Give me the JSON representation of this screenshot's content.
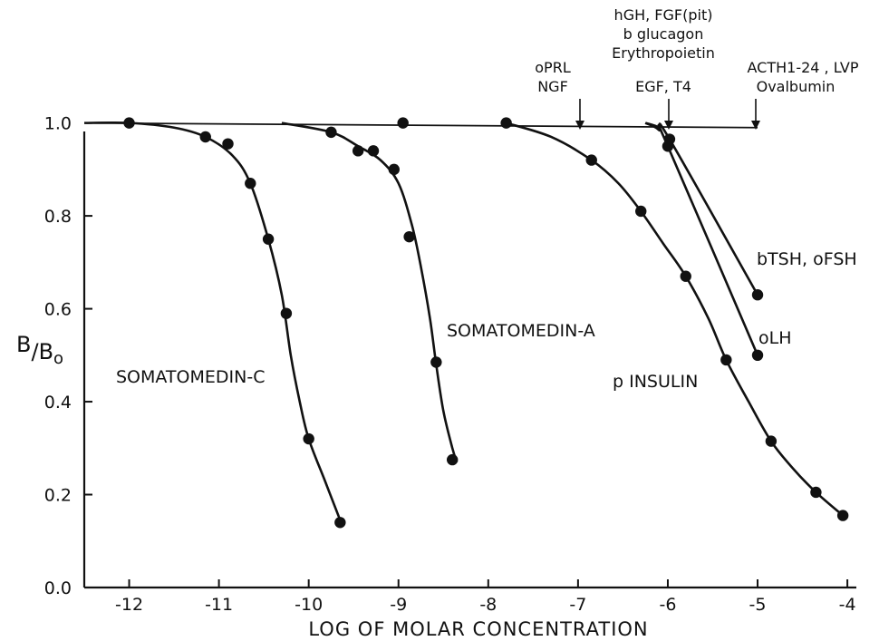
{
  "chart_data": {
    "type": "line",
    "title": "",
    "xlabel": "LOG OF MOLAR CONCENTRATION",
    "ylabel": {
      "main": "B",
      "sep": "/",
      "sub": "B",
      "sub_index": "o"
    },
    "xlim": [
      -12.5,
      -3.9
    ],
    "ylim": [
      0.0,
      1.05
    ],
    "x_ticks": [
      -12,
      -11,
      -10,
      -9,
      -8,
      -7,
      -6,
      -5,
      -4
    ],
    "x_tick_labels": [
      "-12",
      "-11",
      "-10",
      "-9",
      "-8",
      "-7",
      "-6",
      "-5",
      "-4"
    ],
    "y_ticks": [
      0.0,
      0.2,
      0.4,
      0.6,
      0.8,
      1.0
    ],
    "y_tick_labels": [
      "0.0",
      "0.2",
      "0.4",
      "0.6",
      "0.8",
      "1.0"
    ],
    "grid": false,
    "reference_line": {
      "x": [
        -12.5,
        -5.0
      ],
      "y": [
        1.0,
        0.99
      ]
    },
    "series": [
      {
        "name": "SOMATOMEDIN-C",
        "points": [
          [
            -12.0,
            1.0
          ],
          [
            -11.15,
            0.97
          ],
          [
            -10.9,
            0.955
          ],
          [
            -10.65,
            0.87
          ],
          [
            -10.45,
            0.75
          ],
          [
            -10.25,
            0.59
          ],
          [
            -10.0,
            0.32
          ],
          [
            -9.65,
            0.14
          ]
        ],
        "curve": [
          [
            -12.5,
            1.0
          ],
          [
            -12.0,
            1.0
          ],
          [
            -11.5,
            0.99
          ],
          [
            -11.15,
            0.97
          ],
          [
            -10.85,
            0.93
          ],
          [
            -10.65,
            0.87
          ],
          [
            -10.45,
            0.75
          ],
          [
            -10.3,
            0.63
          ],
          [
            -10.2,
            0.5
          ],
          [
            -10.1,
            0.4
          ],
          [
            -10.0,
            0.32
          ],
          [
            -9.82,
            0.23
          ],
          [
            -9.65,
            0.145
          ]
        ]
      },
      {
        "name": "SOMATOMEDIN-A",
        "points": [
          [
            -9.75,
            0.98
          ],
          [
            -9.45,
            0.94
          ],
          [
            -9.28,
            0.94
          ],
          [
            -9.05,
            0.9
          ],
          [
            -8.88,
            0.755
          ],
          [
            -8.58,
            0.485
          ],
          [
            -8.4,
            0.275
          ]
        ],
        "curve": [
          [
            -10.3,
            1.0
          ],
          [
            -9.75,
            0.98
          ],
          [
            -9.45,
            0.95
          ],
          [
            -9.2,
            0.92
          ],
          [
            -9.0,
            0.87
          ],
          [
            -8.85,
            0.78
          ],
          [
            -8.75,
            0.69
          ],
          [
            -8.65,
            0.58
          ],
          [
            -8.58,
            0.48
          ],
          [
            -8.5,
            0.38
          ],
          [
            -8.4,
            0.3
          ],
          [
            -8.35,
            0.27
          ]
        ]
      },
      {
        "name": "p INSULIN",
        "points": [
          [
            -8.95,
            1.0
          ],
          [
            -7.8,
            1.0
          ],
          [
            -6.85,
            0.92
          ],
          [
            -6.3,
            0.81
          ],
          [
            -5.8,
            0.67
          ],
          [
            -5.35,
            0.49
          ],
          [
            -4.85,
            0.315
          ],
          [
            -4.35,
            0.205
          ],
          [
            -4.05,
            0.155
          ]
        ],
        "curve": [
          [
            -7.8,
            1.0
          ],
          [
            -7.3,
            0.97
          ],
          [
            -6.85,
            0.92
          ],
          [
            -6.55,
            0.87
          ],
          [
            -6.3,
            0.81
          ],
          [
            -6.05,
            0.74
          ],
          [
            -5.8,
            0.67
          ],
          [
            -5.55,
            0.58
          ],
          [
            -5.35,
            0.49
          ],
          [
            -5.1,
            0.4
          ],
          [
            -4.85,
            0.315
          ],
          [
            -4.6,
            0.255
          ],
          [
            -4.35,
            0.205
          ],
          [
            -4.05,
            0.155
          ]
        ]
      },
      {
        "name": "bTSH, oFSH",
        "points": [
          [
            -5.98,
            0.965
          ],
          [
            -5.0,
            0.63
          ]
        ],
        "curve": [
          [
            -6.25,
            1.0
          ],
          [
            -6.1,
            0.99
          ],
          [
            -5.98,
            0.965
          ],
          [
            -5.0,
            0.63
          ]
        ]
      },
      {
        "name": "oLH",
        "points": [
          [
            -6.0,
            0.95
          ],
          [
            -5.0,
            0.5
          ]
        ],
        "curve": [
          [
            -6.25,
            1.0
          ],
          [
            -6.1,
            0.985
          ],
          [
            -6.0,
            0.95
          ],
          [
            -5.0,
            0.5
          ]
        ]
      }
    ],
    "annotations": [
      {
        "lines": [
          "oPRL",
          "NGF"
        ],
        "x": -7.0
      },
      {
        "lines": [
          "hGH, FGF(pit)",
          "b glucagon",
          "Erythropoietin",
          "EGF, T4"
        ],
        "x": -6.0
      },
      {
        "lines": [
          "ACTH1-24 , LVP",
          "Ovalbumin"
        ],
        "x": -5.0
      }
    ]
  }
}
